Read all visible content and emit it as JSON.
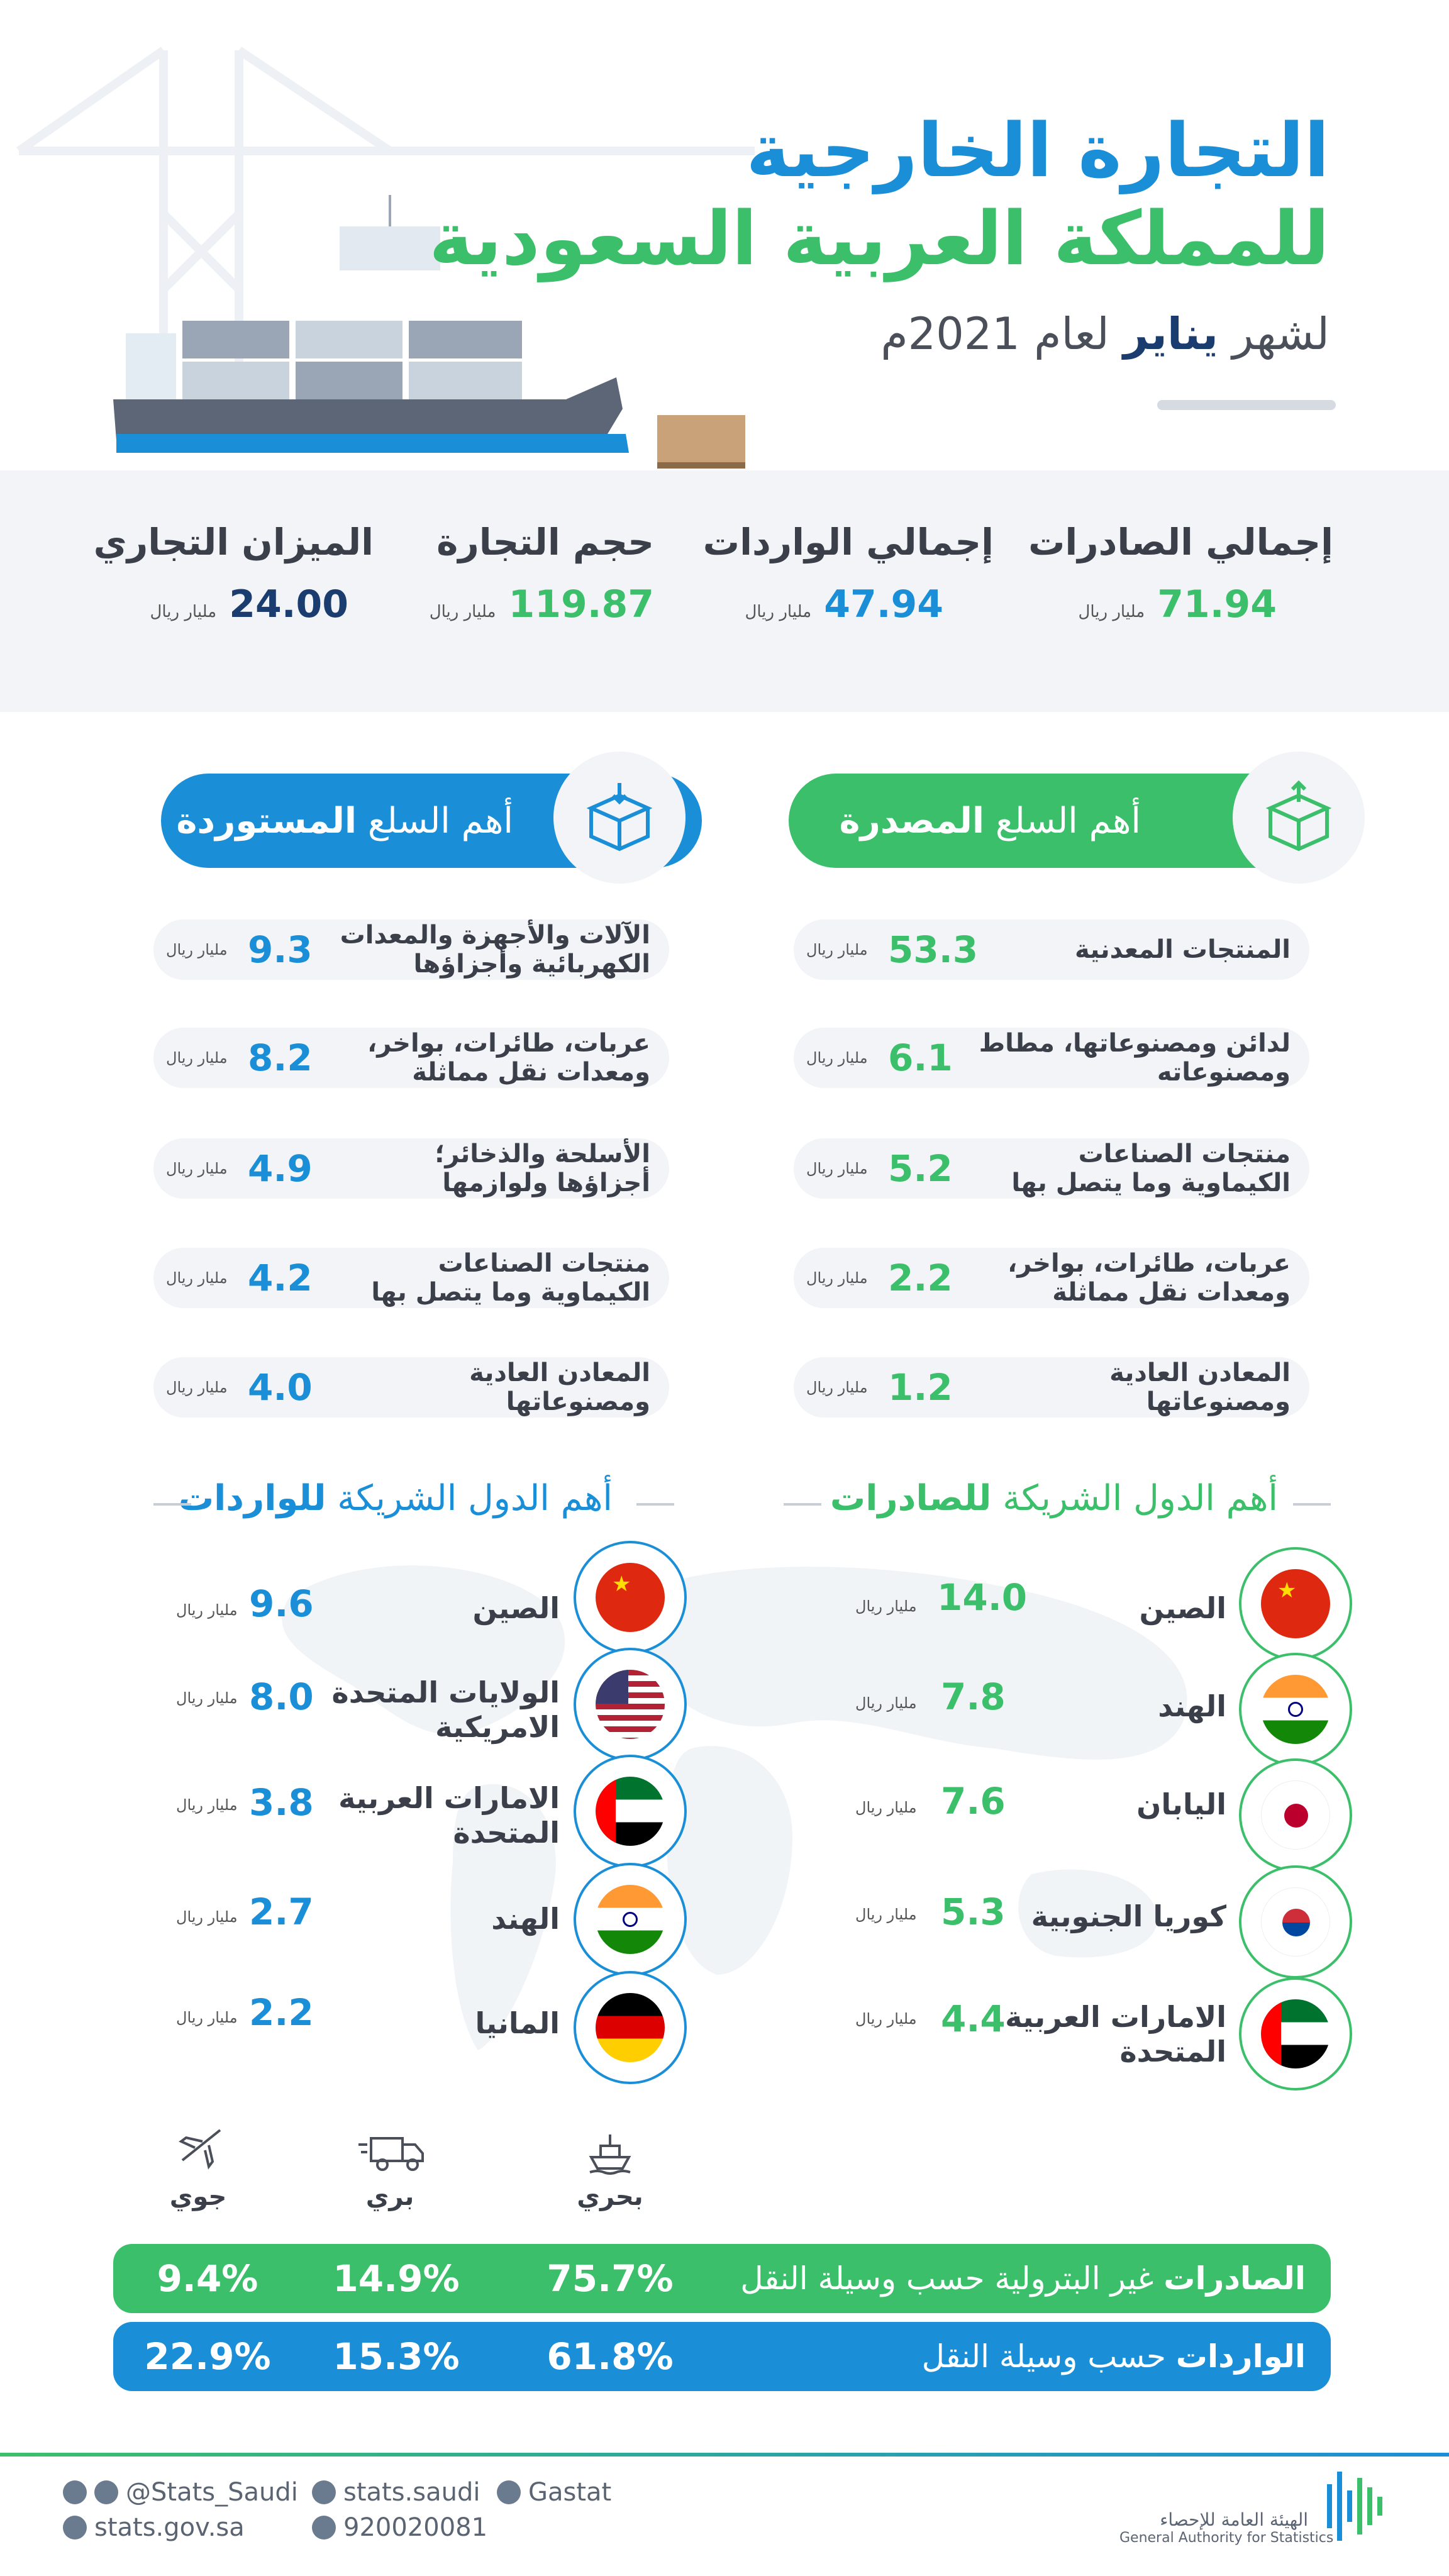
{
  "header": {
    "title_line1": "التجارة الخارجية",
    "title_line2": "للمملكة العربية السعودية",
    "subtitle_pre": "لشهر ",
    "subtitle_month": "يناير",
    "subtitle_post": " لعام 2021م"
  },
  "totals": {
    "unit": "مليار ريال",
    "exports": {
      "label": "إجمالي الصادرات",
      "value": "71.94"
    },
    "imports": {
      "label": "إجمالي الواردات",
      "value": "47.94"
    },
    "volume": {
      "label": "حجم التجارة",
      "value": "119.87"
    },
    "balance": {
      "label": "الميزان التجاري",
      "value": "24.00"
    }
  },
  "exported_goods": {
    "title_pre": "أهم السلع ",
    "title_bold": "المصدرة",
    "unit": "مليار ريال",
    "items": [
      {
        "name": "المنتجات المعدنية",
        "value": "53.3"
      },
      {
        "name": "لدائن ومصنوعاتها، مطاط ومصنوعاته",
        "value": "6.1"
      },
      {
        "name": "منتجات الصناعات الكيماوية وما يتصل بها",
        "value": "5.2"
      },
      {
        "name": "عربات، طائرات، بواخر، ومعدات نقل مماثلة",
        "value": "2.2"
      },
      {
        "name": "المعادن العادية ومصنوعاتها",
        "value": "1.2"
      }
    ]
  },
  "imported_goods": {
    "title_pre": "أهم السلع ",
    "title_bold": "المستوردة",
    "unit": "مليار ريال",
    "items": [
      {
        "name": "الآلات والأجهزة والمعدات الكهربائية وأجزاؤها",
        "value": "9.3"
      },
      {
        "name": "عربات، طائرات، بواخر، ومعدات نقل مماثلة",
        "value": "8.2"
      },
      {
        "name": "الأسلحة والذخائر؛ أجزاؤها ولوازمها",
        "value": "4.9"
      },
      {
        "name": "منتجات الصناعات الكيماوية وما يتصل بها",
        "value": "4.2"
      },
      {
        "name": "المعادن العادية ومصنوعاتها",
        "value": "4.0"
      }
    ]
  },
  "export_partners": {
    "title_pre": "أهم الدول الشريكة ",
    "title_bold": "للصادرات",
    "unit": "مليار ريال",
    "items": [
      {
        "name": "الصين",
        "value": "14.0",
        "flag": "china"
      },
      {
        "name": "الهند",
        "value": "7.8",
        "flag": "india"
      },
      {
        "name": "اليابان",
        "value": "7.6",
        "flag": "japan"
      },
      {
        "name": "كوريا الجنوبية",
        "value": "5.3",
        "flag": "south-korea"
      },
      {
        "name": "الامارات العربية المتحدة",
        "value": "4.4",
        "flag": "uae"
      }
    ]
  },
  "import_partners": {
    "title_pre": "أهم الدول الشريكة ",
    "title_bold": "للواردات",
    "unit": "مليار ريال",
    "items": [
      {
        "name": "الصين",
        "value": "9.6",
        "flag": "china"
      },
      {
        "name": "الولايات المتحدة الامريكية",
        "value": "8.0",
        "flag": "usa"
      },
      {
        "name": "الامارات العربية المتحدة",
        "value": "3.8",
        "flag": "uae"
      },
      {
        "name": "الهند",
        "value": "2.7",
        "flag": "india"
      },
      {
        "name": "المانيا",
        "value": "2.2",
        "flag": "germany"
      }
    ]
  },
  "transport": {
    "modes": {
      "sea": "بحري",
      "land": "بري",
      "air": "جوي"
    },
    "exports": {
      "label_bold": "الصادرات",
      "label_rest": " غير البترولية حسب وسيلة النقل",
      "sea": "75.7%",
      "land": "14.9%",
      "air": "9.4%"
    },
    "imports": {
      "label_bold": "الواردات",
      "label_rest": " حسب وسيلة النقل",
      "sea": "61.8%",
      "land": "15.3%",
      "air": "22.9%"
    }
  },
  "footer": {
    "twitter": "@Stats_Saudi",
    "facebook": "stats.saudi",
    "linkedin": "Gastat",
    "website": "stats.gov.sa",
    "phone": "920020081",
    "org_ar": "الهيئة العامة للإحصاء",
    "org_en": "General Authority for Statistics"
  },
  "colors": {
    "green": "#3cbf6a",
    "blue": "#1a8fd8",
    "navy": "#1a3c6e"
  }
}
